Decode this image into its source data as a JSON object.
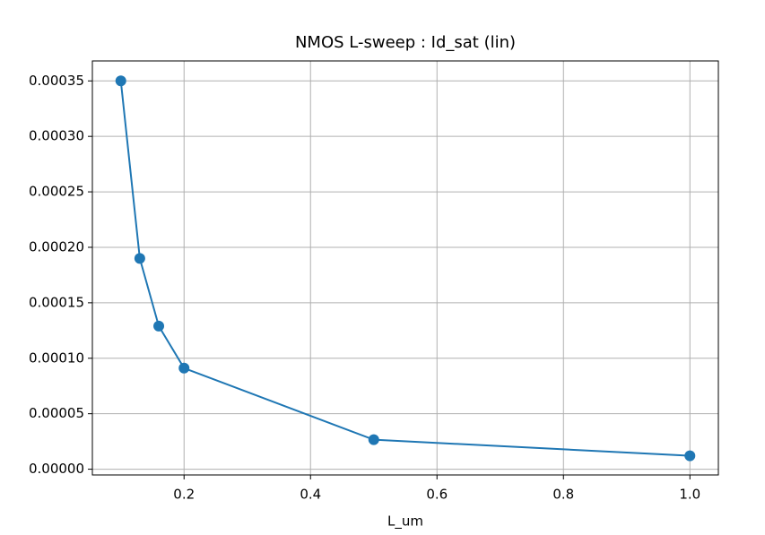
{
  "chart_data": {
    "type": "line",
    "title": "NMOS L-sweep : Id_sat (lin)",
    "x_label": "L_um",
    "x": [
      0.1,
      0.13,
      0.16,
      0.2,
      0.5,
      1.0
    ],
    "series": [
      {
        "name": "Id_sat",
        "color": "#1f77b4",
        "values": [
          0.00035,
          0.00019,
          0.000129,
          9.11e-05,
          2.66e-05,
          1.21e-05
        ]
      }
    ],
    "xlim": [
      0.055,
      1.045
    ],
    "xticks": [
      0.2,
      0.4,
      0.6,
      0.8,
      {
        "value": 1,
        "label": "1.0"
      }
    ],
    "ylim": [
      -5.2e-06,
      0.000368
    ],
    "yticks": [
      {
        "value": 0,
        "label": "0.00000"
      },
      {
        "value": 5e-05,
        "label": "0.00005"
      },
      {
        "value": 0.0001,
        "label": "0.00010"
      },
      {
        "value": 0.00015,
        "label": "0.00015"
      },
      {
        "value": 0.0002,
        "label": "0.00020"
      },
      {
        "value": 0.00025,
        "label": "0.00025"
      },
      {
        "value": 0.0003,
        "label": "0.00030"
      },
      {
        "value": 0.00035,
        "label": "0.00035"
      }
    ],
    "grid": true
  }
}
